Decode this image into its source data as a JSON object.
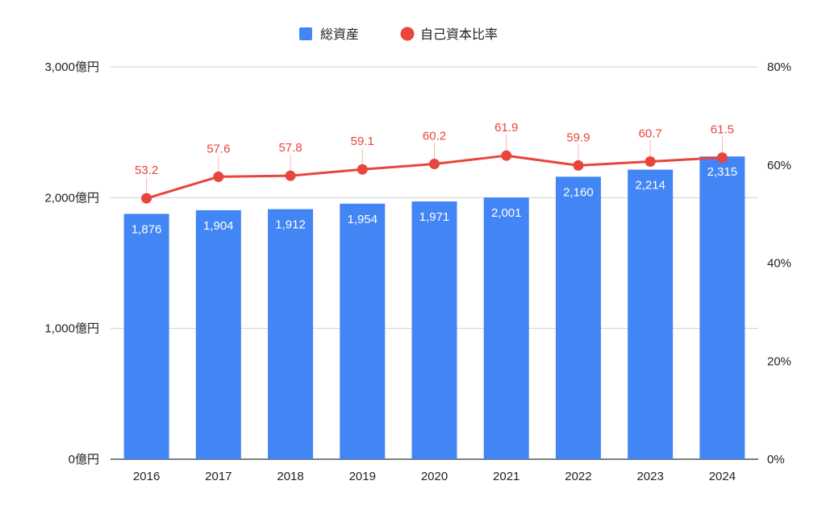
{
  "colors": {
    "bar": "#4285f4",
    "line": "#e8453c",
    "grid": "#d0d0d0"
  },
  "legend": [
    {
      "label": "総資産",
      "marker": "square",
      "color": "#4285f4"
    },
    {
      "label": "自己資本比率",
      "marker": "circle",
      "color": "#e8453c"
    }
  ],
  "chart_data": {
    "type": "bar",
    "categories": [
      "2016",
      "2017",
      "2018",
      "2019",
      "2020",
      "2021",
      "2022",
      "2023",
      "2024"
    ],
    "series": [
      {
        "name": "総資産",
        "type": "bar",
        "axis": "left",
        "values": [
          1876,
          1904,
          1912,
          1954,
          1971,
          2001,
          2160,
          2214,
          2315
        ],
        "labels": [
          "1,876",
          "1,904",
          "1,912",
          "1,954",
          "1,971",
          "2,001",
          "2,160",
          "2,214",
          "2,315"
        ]
      },
      {
        "name": "自己資本比率",
        "type": "line",
        "axis": "right",
        "values": [
          53.2,
          57.6,
          57.8,
          59.1,
          60.2,
          61.9,
          59.9,
          60.7,
          61.5
        ],
        "labels": [
          "53.2",
          "57.6",
          "57.8",
          "59.1",
          "60.2",
          "61.9",
          "59.9",
          "60.7",
          "61.5"
        ]
      }
    ],
    "y_left": {
      "ylim": [
        0,
        3000
      ],
      "ticks": [
        0,
        1000,
        2000,
        3000
      ],
      "tick_labels": [
        "0億円",
        "1,000億円",
        "2,000億円",
        "3,000億円"
      ]
    },
    "y_right": {
      "ylim": [
        0,
        80
      ],
      "ticks": [
        0,
        20,
        40,
        60,
        80
      ],
      "tick_labels": [
        "0%",
        "20%",
        "40%",
        "60%",
        "80%"
      ]
    },
    "grid": true,
    "legend_position": "top"
  }
}
